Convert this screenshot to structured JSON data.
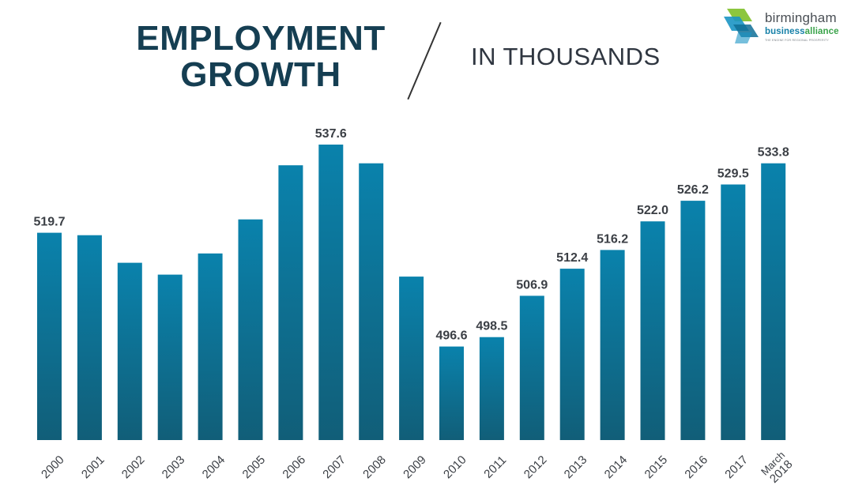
{
  "header": {
    "title_line1": "EMPLOYMENT",
    "title_line2": "GROWTH",
    "subtitle": "IN THOUSANDS"
  },
  "logo": {
    "word1": "birmingham",
    "word2a": "business",
    "word2b": "alliance",
    "tagline": "THE ENGINE FOR REGIONAL PROSPERITY"
  },
  "colors": {
    "bar_top": "#0a82ac",
    "bar_bottom": "#115e78",
    "title": "#153e52",
    "text": "#3b3f45"
  },
  "chart_data": {
    "type": "bar",
    "title": "EMPLOYMENT GROWTH",
    "subtitle": "IN THOUSANDS",
    "categories": [
      "2000",
      "2001",
      "2002",
      "2003",
      "2004",
      "2005",
      "2006",
      "2007",
      "2008",
      "2009",
      "2010",
      "2011",
      "2012",
      "2013",
      "2014",
      "2015",
      "2016",
      "2017",
      "March 2018"
    ],
    "tick_labels": [
      [
        "2000"
      ],
      [
        "2001"
      ],
      [
        "2002"
      ],
      [
        "2003"
      ],
      [
        "2004"
      ],
      [
        "2005"
      ],
      [
        "2006"
      ],
      [
        "2007"
      ],
      [
        "2008"
      ],
      [
        "2009"
      ],
      [
        "2010"
      ],
      [
        "2011"
      ],
      [
        "2012"
      ],
      [
        "2013"
      ],
      [
        "2014"
      ],
      [
        "2015"
      ],
      [
        "2016"
      ],
      [
        "2017"
      ],
      [
        "March",
        "2018"
      ]
    ],
    "values": [
      519.7,
      519.2,
      513.6,
      511.2,
      515.5,
      522.4,
      533.4,
      537.6,
      533.8,
      510.8,
      496.6,
      498.5,
      506.9,
      512.4,
      516.2,
      522.0,
      526.2,
      529.5,
      533.8
    ],
    "labels": [
      "519.7",
      "",
      "",
      "",
      "",
      "",
      "",
      "537.6",
      "",
      "",
      "496.6",
      "498.5",
      "506.9",
      "512.4",
      "516.2",
      "522.0",
      "526.2",
      "529.5",
      "533.8"
    ],
    "ylim": [
      477.6,
      537.6
    ],
    "grid": false,
    "legend": "none"
  }
}
